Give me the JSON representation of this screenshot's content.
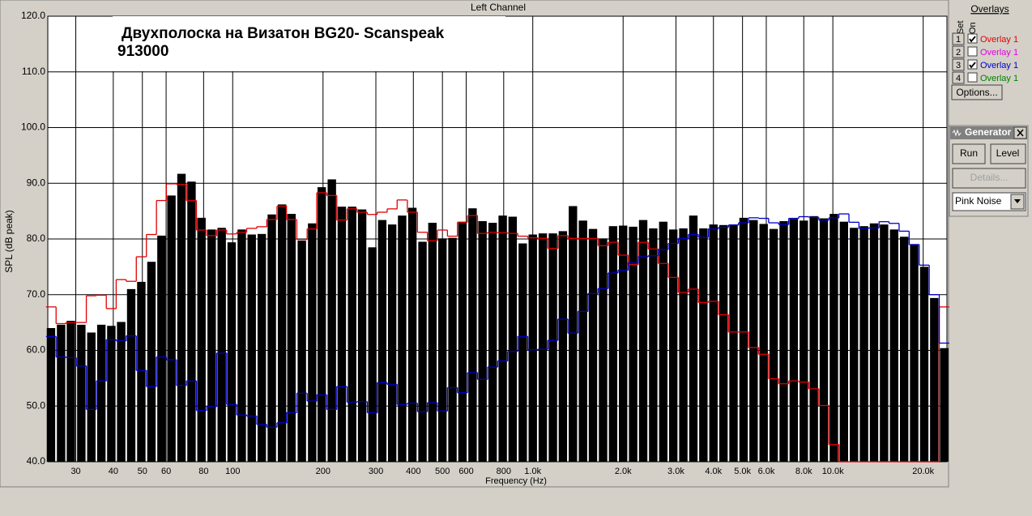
{
  "chart_data": {
    "type": "bar",
    "header": "Left Channel",
    "title_lines": [
      "Двухполоска на  Визатон BG20- Scanspeak",
      "913000"
    ],
    "x_label": "Frequency (Hz)",
    "y_label": "SPL (dB peak)",
    "log_x": true,
    "grid": true,
    "color": "#000000",
    "x": [
      24.8,
      26.8,
      28.9,
      31.3,
      33.8,
      36.5,
      39.4,
      42.5,
      45.9,
      49.6,
      53.6,
      57.9,
      62.5,
      67.5,
      72.9,
      78.7,
      85.1,
      91.9,
      99.2,
      107.2,
      115.7,
      125,
      135,
      146,
      157,
      170,
      184,
      198,
      214,
      231,
      250,
      270,
      292,
      315,
      340,
      367,
      397,
      429,
      463,
      500,
      540,
      583,
      630,
      680,
      735,
      794,
      857,
      926,
      1000,
      1080,
      1167,
      1260,
      1361,
      1470,
      1587,
      1715,
      1852,
      2000,
      2160,
      2333,
      2520,
      2722,
      2939,
      3175,
      3429,
      3703,
      4000,
      4320,
      4666,
      5040,
      5443,
      5879,
      6350,
      6858,
      7407,
      8000,
      8640,
      9331,
      10079,
      10886,
      11758,
      12699,
      13716,
      14814,
      16000,
      17280,
      18663,
      20159,
      21772,
      23515
    ],
    "values": [
      64.0,
      64.6,
      65.3,
      64.6,
      63.2,
      64.6,
      64.4,
      65.1,
      71.0,
      72.3,
      75.9,
      80.6,
      87.8,
      91.7,
      90.3,
      83.8,
      81.7,
      82.0,
      79.4,
      81.7,
      80.8,
      80.9,
      84.4,
      86.2,
      84.5,
      79.7,
      82.8,
      89.3,
      90.7,
      85.8,
      85.8,
      85.3,
      78.5,
      83.4,
      82.6,
      84.2,
      85.6,
      79.5,
      82.9,
      80.1,
      80.2,
      83.1,
      85.5,
      83.2,
      82.9,
      84.2,
      84.0,
      79.2,
      80.8,
      81.0,
      81.0,
      81.4,
      85.9,
      83.3,
      81.8,
      80.1,
      82.3,
      82.4,
      82.2,
      83.4,
      81.9,
      83.1,
      81.7,
      81.9,
      84.2,
      81.9,
      82.6,
      82.5,
      82.6,
      83.8,
      83.4,
      82.7,
      81.8,
      83.2,
      83.6,
      83.3,
      84.1,
      83.7,
      84.5,
      83.1,
      82.0,
      82.3,
      82.8,
      82.6,
      81.7,
      80.4,
      78.9,
      75.0,
      69.4,
      60.4
    ],
    "overlays": [
      {
        "set": 1,
        "on": true,
        "name": "Overlay 1",
        "color": "#e00000",
        "values": [
          67.8,
          64.8,
          65.0,
          65.0,
          69.8,
          69.9,
          67.5,
          72.7,
          72.4,
          76.8,
          80.8,
          86.9,
          89.9,
          89.8,
          86.9,
          81.6,
          80.6,
          81.6,
          80.9,
          81.2,
          81.9,
          82.2,
          83.5,
          85.9,
          83.5,
          79.9,
          81.8,
          88.3,
          87.8,
          83.4,
          85.4,
          84.8,
          84.4,
          84.8,
          85.4,
          87.0,
          84.8,
          81.2,
          79.7,
          81.6,
          80.5,
          83.0,
          84.2,
          81.0,
          81.2,
          81.1,
          81.0,
          80.5,
          80.2,
          80.1,
          78.3,
          80.6,
          80.1,
          80.1,
          80.1,
          78.8,
          79.4,
          77.1,
          75.4,
          79.4,
          78.2,
          75.6,
          73.1,
          70.4,
          71.0,
          68.6,
          68.8,
          66.4,
          63.3,
          63.3,
          60.5,
          59.3,
          54.9,
          54.0,
          54.5,
          54.3,
          53.1,
          50.1,
          43.1,
          40,
          40,
          40,
          40,
          40,
          40,
          40,
          40,
          40,
          40,
          67.8
        ]
      },
      {
        "set": 2,
        "on": false,
        "name": "Overlay 1",
        "color": "#e000e0"
      },
      {
        "set": 3,
        "on": true,
        "name": "Overlay 1",
        "color": "#0000c8",
        "values": [
          62.5,
          58.8,
          58.7,
          57.2,
          49.4,
          54.5,
          61.9,
          61.7,
          62.6,
          56.4,
          53.5,
          58.8,
          58.3,
          53.7,
          54.5,
          49.2,
          49.9,
          59.5,
          50.3,
          48.4,
          48.2,
          46.7,
          46.2,
          47.0,
          48.8,
          52.3,
          50.9,
          52.0,
          49.4,
          53.5,
          50.7,
          50.8,
          48.8,
          54.2,
          53.9,
          50.3,
          50.5,
          49.0,
          50.6,
          49.1,
          53.3,
          52.4,
          56.0,
          54.8,
          57.0,
          58.1,
          59.8,
          62.5,
          60.1,
          60.2,
          61.8,
          65.6,
          63.1,
          67.0,
          70.2,
          71.1,
          73.9,
          74.4,
          75.7,
          76.8,
          77.0,
          78.1,
          79.2,
          80.1,
          80.8,
          80.3,
          81.8,
          82.1,
          82.5,
          82.9,
          83.8,
          83.7,
          82.9,
          82.6,
          83.7,
          84.0,
          83.9,
          83.4,
          83.8,
          84.5,
          83.0,
          81.9,
          82.0,
          83.1,
          82.8,
          81.4,
          79.0,
          75.3,
          70.0,
          61.3
        ]
      },
      {
        "set": 4,
        "on": false,
        "name": "Overlay 1",
        "color": "#008000"
      }
    ],
    "xlim": [
      24.2,
      24000
    ],
    "xticks": [
      30,
      40,
      50,
      60,
      80,
      100,
      200,
      300,
      400,
      500,
      600,
      800,
      {
        "value": 1000,
        "label": "1.0k"
      },
      {
        "value": 2000,
        "label": "2.0k"
      },
      {
        "value": 3000,
        "label": "3.0k"
      },
      {
        "value": 4000,
        "label": "4.0k"
      },
      {
        "value": 5000,
        "label": "5.0k"
      },
      {
        "value": 6000,
        "label": "6.0k"
      },
      {
        "value": 8000,
        "label": "8.0k"
      },
      {
        "value": 10000,
        "label": "10.0k"
      },
      {
        "value": 20000,
        "label": "20.0k"
      }
    ],
    "ylim": [
      40,
      120
    ],
    "yticks": [
      {
        "value": 40,
        "label": "40.0"
      },
      {
        "value": 50,
        "label": "50.0"
      },
      {
        "value": 60,
        "label": "60.0"
      },
      {
        "value": 70,
        "label": "70.0"
      },
      {
        "value": 80,
        "label": "80.0"
      },
      {
        "value": 90,
        "label": "90.0"
      },
      {
        "value": 100,
        "label": "100.0"
      },
      {
        "value": 110,
        "label": "110.0"
      },
      {
        "value": 120,
        "label": "120.0"
      }
    ]
  },
  "overlay_panel": {
    "title": "Overlays",
    "set_label": "Set",
    "on_label": "On",
    "options_button": "Options..."
  },
  "generator": {
    "title": "Generator",
    "run_button": "Run",
    "level_button": "Level",
    "details_button": "Details...",
    "noise_select": "Pink Noise"
  }
}
